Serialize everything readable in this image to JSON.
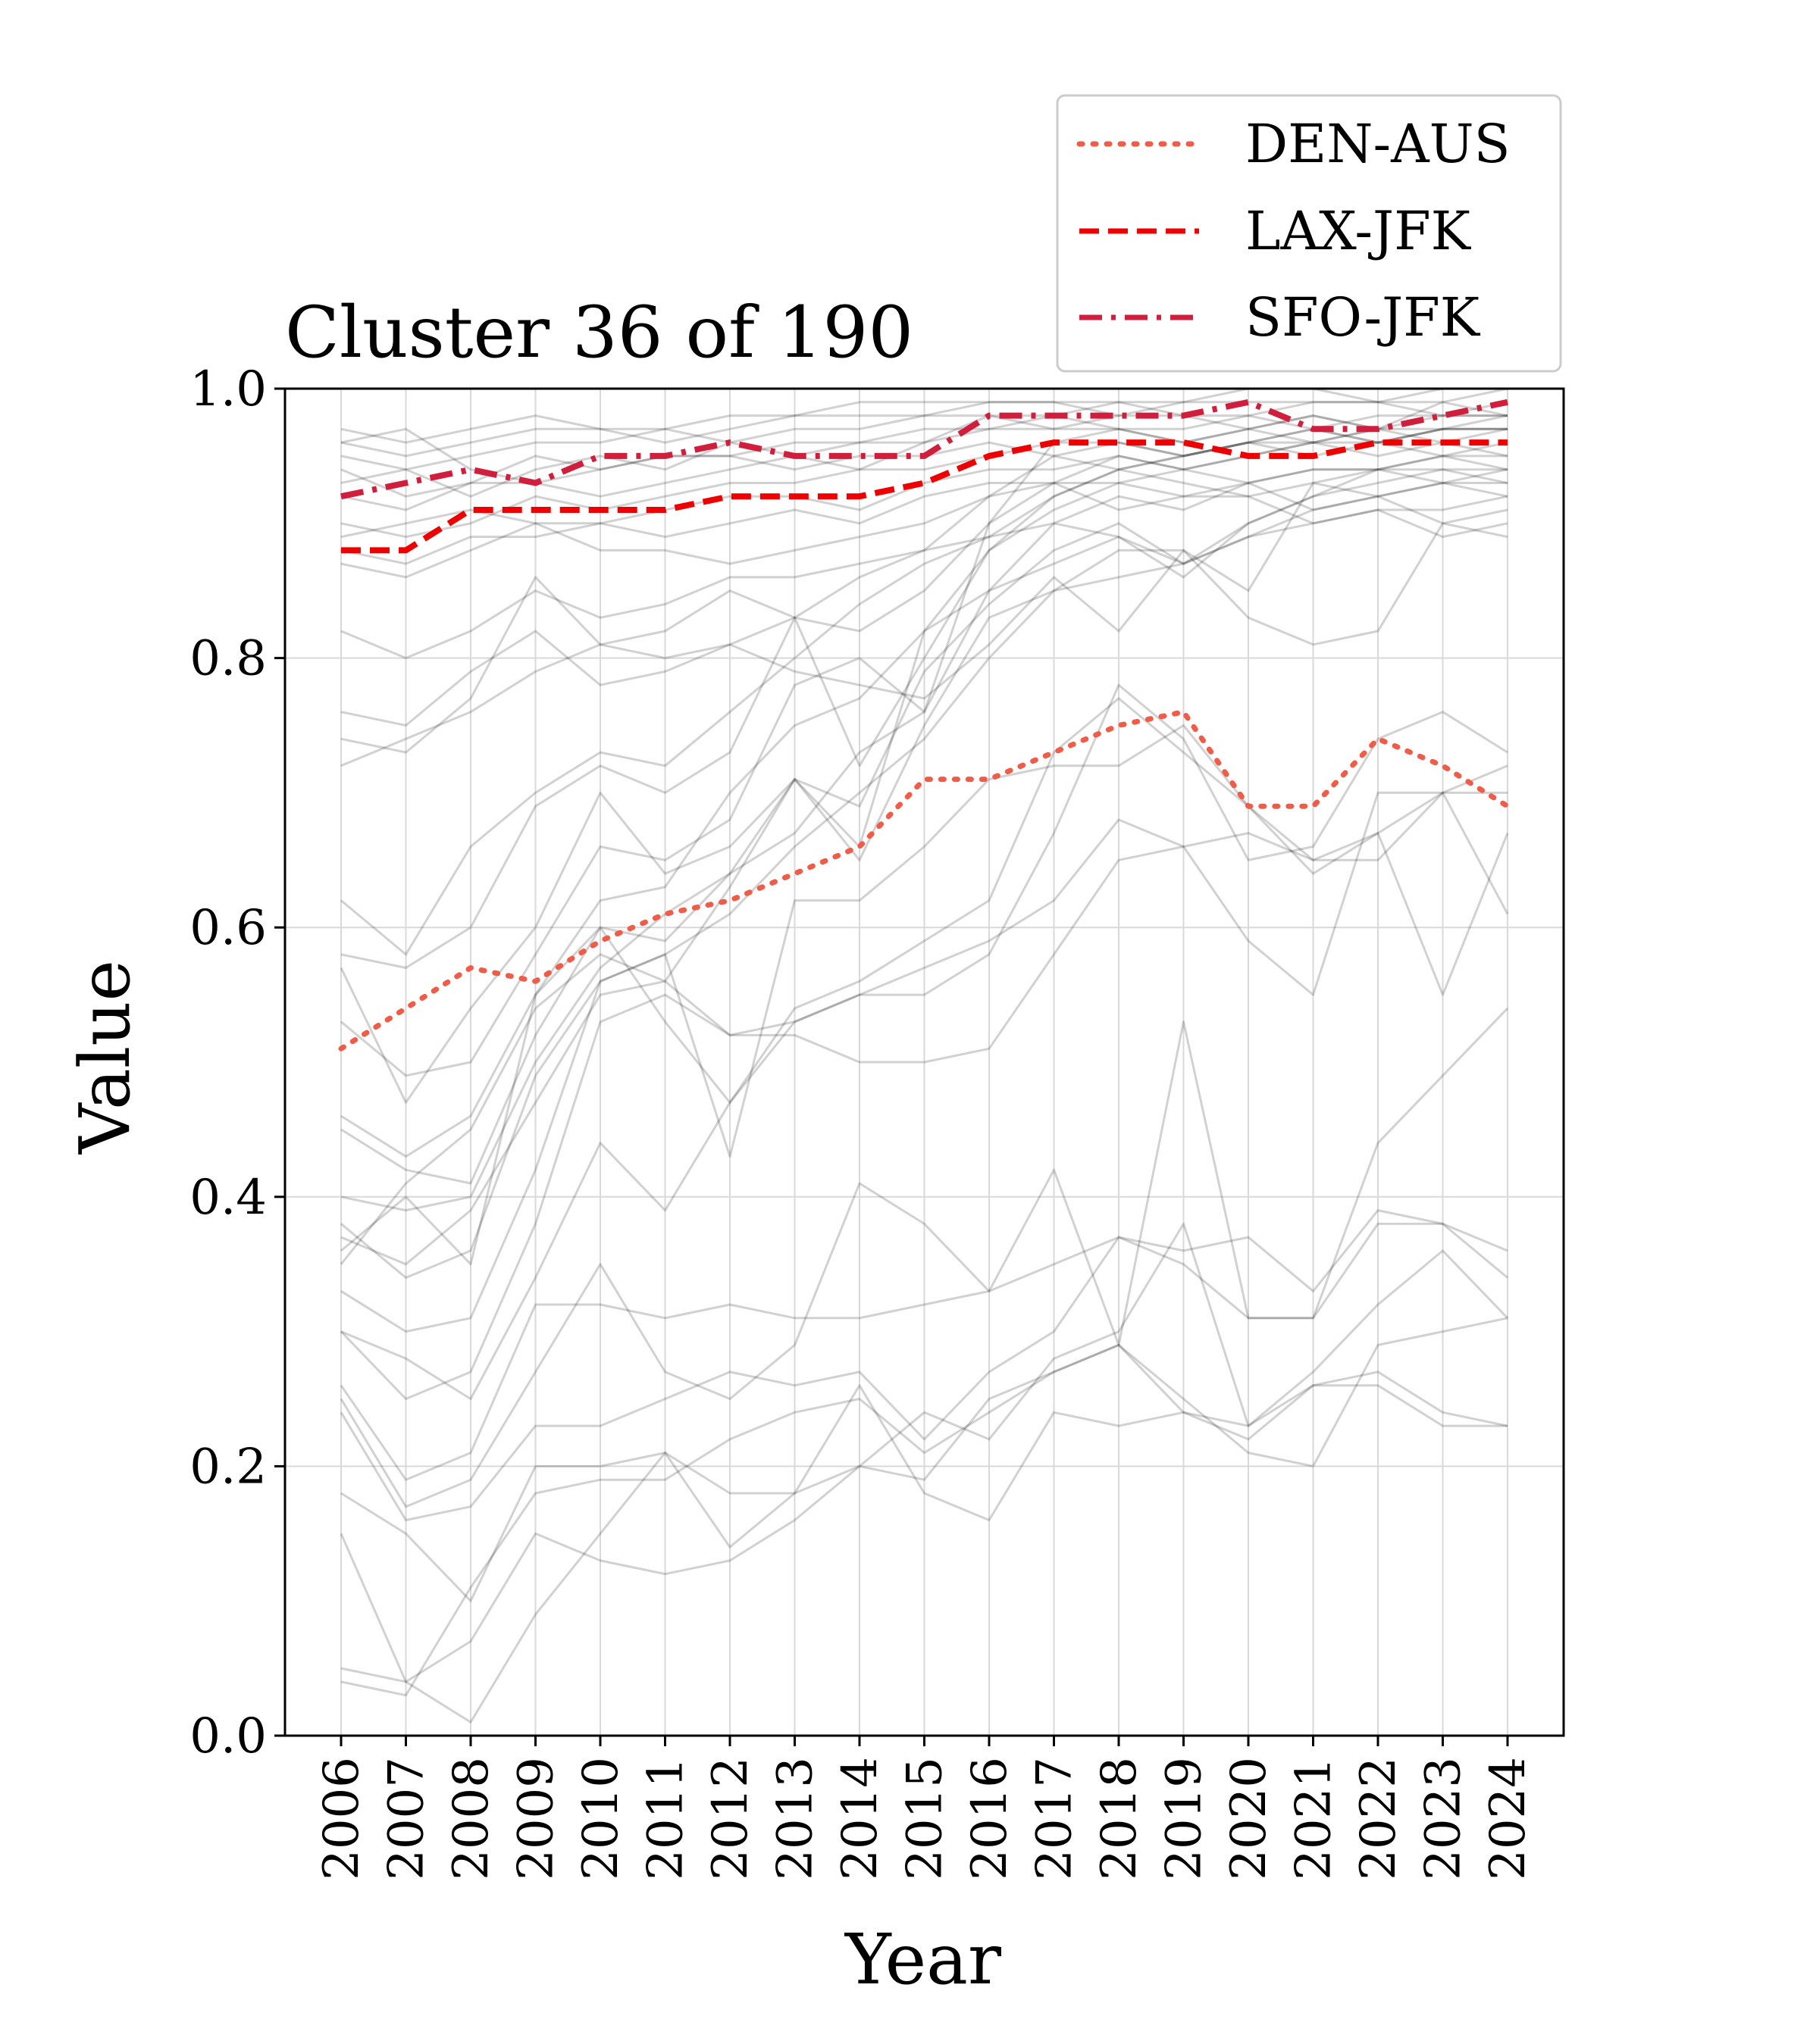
{
  "chart_data": {
    "type": "line",
    "title": "Cluster 36 of 190",
    "xlabel": "Year",
    "ylabel": "Value",
    "ylim": [
      0.0,
      1.0
    ],
    "yticks": [
      "0.0",
      "0.2",
      "0.4",
      "0.6",
      "0.8",
      "1.0"
    ],
    "categories": [
      "2006",
      "2007",
      "2008",
      "2009",
      "2010",
      "2011",
      "2012",
      "2013",
      "2014",
      "2015",
      "2016",
      "2017",
      "2018",
      "2019",
      "2020",
      "2021",
      "2022",
      "2023",
      "2024"
    ],
    "grid": true,
    "legend_position": "above top-right",
    "series": [
      {
        "name": "DEN-AUS",
        "style": "dotted",
        "color": "#f15c48",
        "values": [
          0.51,
          0.54,
          0.57,
          0.56,
          0.59,
          0.61,
          0.62,
          0.64,
          0.66,
          0.71,
          0.71,
          0.73,
          0.75,
          0.76,
          0.69,
          0.69,
          0.74,
          0.72,
          0.69
        ]
      },
      {
        "name": "LAX-JFK",
        "style": "dashed",
        "color": "#ee0000",
        "values": [
          0.88,
          0.88,
          0.91,
          0.91,
          0.91,
          0.91,
          0.92,
          0.92,
          0.92,
          0.93,
          0.95,
          0.96,
          0.96,
          0.96,
          0.95,
          0.95,
          0.96,
          0.96,
          0.96
        ]
      },
      {
        "name": "SFO-JFK",
        "style": "dashdot",
        "color": "#d01e3c",
        "values": [
          0.92,
          0.93,
          0.94,
          0.93,
          0.95,
          0.95,
          0.96,
          0.95,
          0.95,
          0.95,
          0.98,
          0.98,
          0.98,
          0.98,
          0.99,
          0.97,
          0.97,
          0.98,
          0.99
        ]
      }
    ],
    "background_series": [
      [
        0.97,
        0.96,
        0.97,
        0.98,
        0.97,
        0.97,
        0.98,
        0.98,
        0.99,
        0.99,
        0.99,
        0.99,
        0.99,
        0.99,
        1.0,
        1.0,
        0.99,
        1.0,
        1.0
      ],
      [
        0.96,
        0.95,
        0.96,
        0.97,
        0.97,
        0.96,
        0.97,
        0.98,
        0.98,
        0.98,
        0.99,
        0.99,
        0.98,
        0.99,
        0.99,
        0.99,
        0.99,
        0.99,
        1.0
      ],
      [
        0.95,
        0.94,
        0.95,
        0.96,
        0.96,
        0.97,
        0.96,
        0.97,
        0.97,
        0.98,
        0.98,
        0.98,
        0.99,
        0.98,
        0.98,
        0.99,
        0.99,
        0.98,
        0.99
      ],
      [
        0.94,
        0.92,
        0.93,
        0.95,
        0.94,
        0.95,
        0.95,
        0.96,
        0.96,
        0.97,
        0.97,
        0.98,
        0.97,
        0.97,
        0.98,
        0.97,
        0.98,
        0.98,
        0.98
      ],
      [
        0.93,
        0.94,
        0.92,
        0.94,
        0.95,
        0.94,
        0.96,
        0.95,
        0.96,
        0.96,
        0.98,
        0.97,
        0.98,
        0.98,
        0.97,
        0.98,
        0.97,
        0.99,
        0.98
      ],
      [
        0.92,
        0.91,
        0.93,
        0.93,
        0.92,
        0.93,
        0.94,
        0.95,
        0.94,
        0.96,
        0.97,
        0.97,
        0.97,
        0.96,
        0.97,
        0.96,
        0.97,
        0.97,
        0.97
      ],
      [
        0.9,
        0.89,
        0.9,
        0.92,
        0.91,
        0.92,
        0.93,
        0.93,
        0.94,
        0.94,
        0.95,
        0.96,
        0.96,
        0.95,
        0.96,
        0.95,
        0.96,
        0.95,
        0.96
      ],
      [
        0.96,
        0.97,
        0.94,
        0.93,
        0.94,
        0.95,
        0.95,
        0.94,
        0.95,
        0.95,
        0.96,
        0.95,
        0.94,
        0.95,
        0.96,
        0.96,
        0.95,
        0.96,
        0.95
      ],
      [
        0.89,
        0.9,
        0.91,
        0.9,
        0.9,
        0.91,
        0.92,
        0.92,
        0.91,
        0.93,
        0.94,
        0.94,
        0.95,
        0.94,
        0.93,
        0.94,
        0.94,
        0.94,
        0.93
      ],
      [
        0.88,
        0.87,
        0.89,
        0.89,
        0.9,
        0.89,
        0.9,
        0.91,
        0.9,
        0.92,
        0.93,
        0.93,
        0.93,
        0.92,
        0.93,
        0.91,
        0.92,
        0.9,
        0.91
      ],
      [
        0.87,
        0.86,
        0.88,
        0.9,
        0.88,
        0.88,
        0.87,
        0.88,
        0.89,
        0.9,
        0.92,
        0.93,
        0.91,
        0.92,
        0.92,
        0.9,
        0.91,
        0.89,
        0.9
      ],
      [
        0.82,
        0.8,
        0.82,
        0.85,
        0.83,
        0.84,
        0.86,
        0.86,
        0.87,
        0.88,
        0.92,
        0.95,
        0.96,
        0.95,
        0.96,
        0.97,
        0.96,
        0.97,
        0.97
      ],
      [
        0.76,
        0.75,
        0.79,
        0.82,
        0.78,
        0.79,
        0.81,
        0.83,
        0.82,
        0.85,
        0.9,
        0.93,
        0.95,
        0.94,
        0.95,
        0.96,
        0.97,
        0.96,
        0.97
      ],
      [
        0.74,
        0.73,
        0.77,
        0.86,
        0.81,
        0.8,
        0.81,
        0.79,
        0.78,
        0.77,
        0.81,
        0.86,
        0.82,
        0.88,
        0.83,
        0.81,
        0.82,
        0.9,
        0.89
      ],
      [
        0.72,
        0.74,
        0.76,
        0.79,
        0.81,
        0.82,
        0.85,
        0.83,
        0.86,
        0.88,
        0.89,
        0.92,
        0.94,
        0.93,
        0.92,
        0.93,
        0.92,
        0.93,
        0.94
      ],
      [
        0.62,
        0.58,
        0.66,
        0.7,
        0.73,
        0.72,
        0.76,
        0.8,
        0.84,
        0.87,
        0.89,
        0.9,
        0.92,
        0.91,
        0.93,
        0.94,
        0.94,
        0.95,
        0.95
      ],
      [
        0.58,
        0.57,
        0.6,
        0.69,
        0.72,
        0.7,
        0.73,
        0.83,
        0.72,
        0.8,
        0.88,
        0.91,
        0.93,
        0.94,
        0.95,
        0.96,
        0.96,
        0.97,
        0.98
      ],
      [
        0.57,
        0.47,
        0.54,
        0.6,
        0.7,
        0.64,
        0.66,
        0.71,
        0.66,
        0.82,
        0.85,
        0.9,
        0.89,
        0.87,
        0.9,
        0.92,
        0.94,
        0.95,
        0.94
      ],
      [
        0.53,
        0.49,
        0.5,
        0.58,
        0.66,
        0.65,
        0.68,
        0.78,
        0.8,
        0.76,
        0.9,
        0.96,
        0.97,
        0.96,
        0.97,
        0.98,
        0.97,
        0.98,
        0.98
      ],
      [
        0.46,
        0.43,
        0.46,
        0.55,
        0.62,
        0.63,
        0.7,
        0.75,
        0.77,
        0.82,
        0.88,
        0.92,
        0.94,
        0.95,
        0.96,
        0.97,
        0.96,
        0.97,
        0.97
      ],
      [
        0.45,
        0.42,
        0.41,
        0.52,
        0.6,
        0.59,
        0.64,
        0.71,
        0.69,
        0.79,
        0.84,
        0.88,
        0.9,
        0.87,
        0.89,
        0.91,
        0.92,
        0.93,
        0.93
      ],
      [
        0.4,
        0.39,
        0.4,
        0.5,
        0.57,
        0.61,
        0.64,
        0.67,
        0.73,
        0.76,
        0.85,
        0.87,
        0.89,
        0.86,
        0.9,
        0.92,
        0.93,
        0.94,
        0.94
      ],
      [
        0.38,
        0.34,
        0.36,
        0.49,
        0.56,
        0.58,
        0.61,
        0.66,
        0.7,
        0.74,
        0.8,
        0.85,
        0.86,
        0.87,
        0.89,
        0.9,
        0.91,
        0.91,
        0.92
      ],
      [
        0.37,
        0.35,
        0.39,
        0.47,
        0.55,
        0.56,
        0.63,
        0.71,
        0.65,
        0.75,
        0.83,
        0.85,
        0.88,
        0.88,
        0.85,
        0.93,
        0.94,
        0.93,
        0.92
      ],
      [
        0.36,
        0.4,
        0.35,
        0.55,
        0.6,
        0.53,
        0.47,
        0.53,
        0.55,
        0.57,
        0.59,
        0.62,
        0.68,
        0.66,
        0.59,
        0.55,
        0.7,
        0.7,
        0.7
      ],
      [
        0.35,
        0.41,
        0.45,
        0.54,
        0.58,
        0.56,
        0.52,
        0.52,
        0.5,
        0.5,
        0.51,
        0.58,
        0.65,
        0.66,
        0.67,
        0.65,
        0.65,
        0.7,
        0.72
      ],
      [
        0.33,
        0.3,
        0.31,
        0.42,
        0.56,
        0.58,
        0.43,
        0.62,
        0.62,
        0.66,
        0.71,
        0.72,
        0.72,
        0.75,
        0.69,
        0.64,
        0.67,
        0.55,
        0.67
      ],
      [
        0.3,
        0.25,
        0.27,
        0.38,
        0.53,
        0.55,
        0.52,
        0.53,
        0.55,
        0.55,
        0.58,
        0.67,
        0.78,
        0.74,
        0.65,
        0.66,
        0.74,
        0.76,
        0.73
      ],
      [
        0.3,
        0.28,
        0.25,
        0.34,
        0.44,
        0.39,
        0.47,
        0.54,
        0.56,
        0.59,
        0.62,
        0.73,
        0.77,
        0.73,
        0.69,
        0.65,
        0.67,
        0.7,
        0.61
      ],
      [
        0.26,
        0.19,
        0.21,
        0.32,
        0.32,
        0.31,
        0.32,
        0.31,
        0.31,
        0.32,
        0.33,
        0.35,
        0.37,
        0.36,
        0.37,
        0.33,
        0.39,
        0.38,
        0.36
      ],
      [
        0.25,
        0.17,
        0.19,
        0.27,
        0.35,
        0.27,
        0.25,
        0.29,
        0.41,
        0.38,
        0.33,
        0.42,
        0.29,
        0.53,
        0.31,
        0.31,
        0.44,
        0.49,
        0.54
      ],
      [
        0.24,
        0.16,
        0.17,
        0.23,
        0.23,
        0.25,
        0.27,
        0.26,
        0.27,
        0.22,
        0.27,
        0.3,
        0.37,
        0.35,
        0.31,
        0.31,
        0.38,
        0.38,
        0.34
      ],
      [
        0.18,
        0.15,
        0.1,
        0.2,
        0.2,
        0.21,
        0.18,
        0.18,
        0.2,
        0.24,
        0.22,
        0.28,
        0.3,
        0.38,
        0.23,
        0.26,
        0.26,
        0.23,
        0.23
      ],
      [
        0.15,
        0.04,
        0.07,
        0.15,
        0.13,
        0.12,
        0.13,
        0.16,
        0.2,
        0.19,
        0.25,
        0.27,
        0.29,
        0.25,
        0.21,
        0.2,
        0.29,
        0.3,
        0.31
      ],
      [
        0.05,
        0.04,
        0.01,
        0.09,
        0.15,
        0.21,
        0.14,
        0.18,
        0.26,
        0.18,
        0.16,
        0.24,
        0.23,
        0.24,
        0.23,
        0.27,
        0.32,
        0.36,
        0.31
      ],
      [
        0.04,
        0.03,
        0.11,
        0.18,
        0.19,
        0.19,
        0.22,
        0.24,
        0.25,
        0.21,
        0.24,
        0.27,
        0.29,
        0.24,
        0.22,
        0.26,
        0.27,
        0.24,
        0.23
      ]
    ]
  }
}
